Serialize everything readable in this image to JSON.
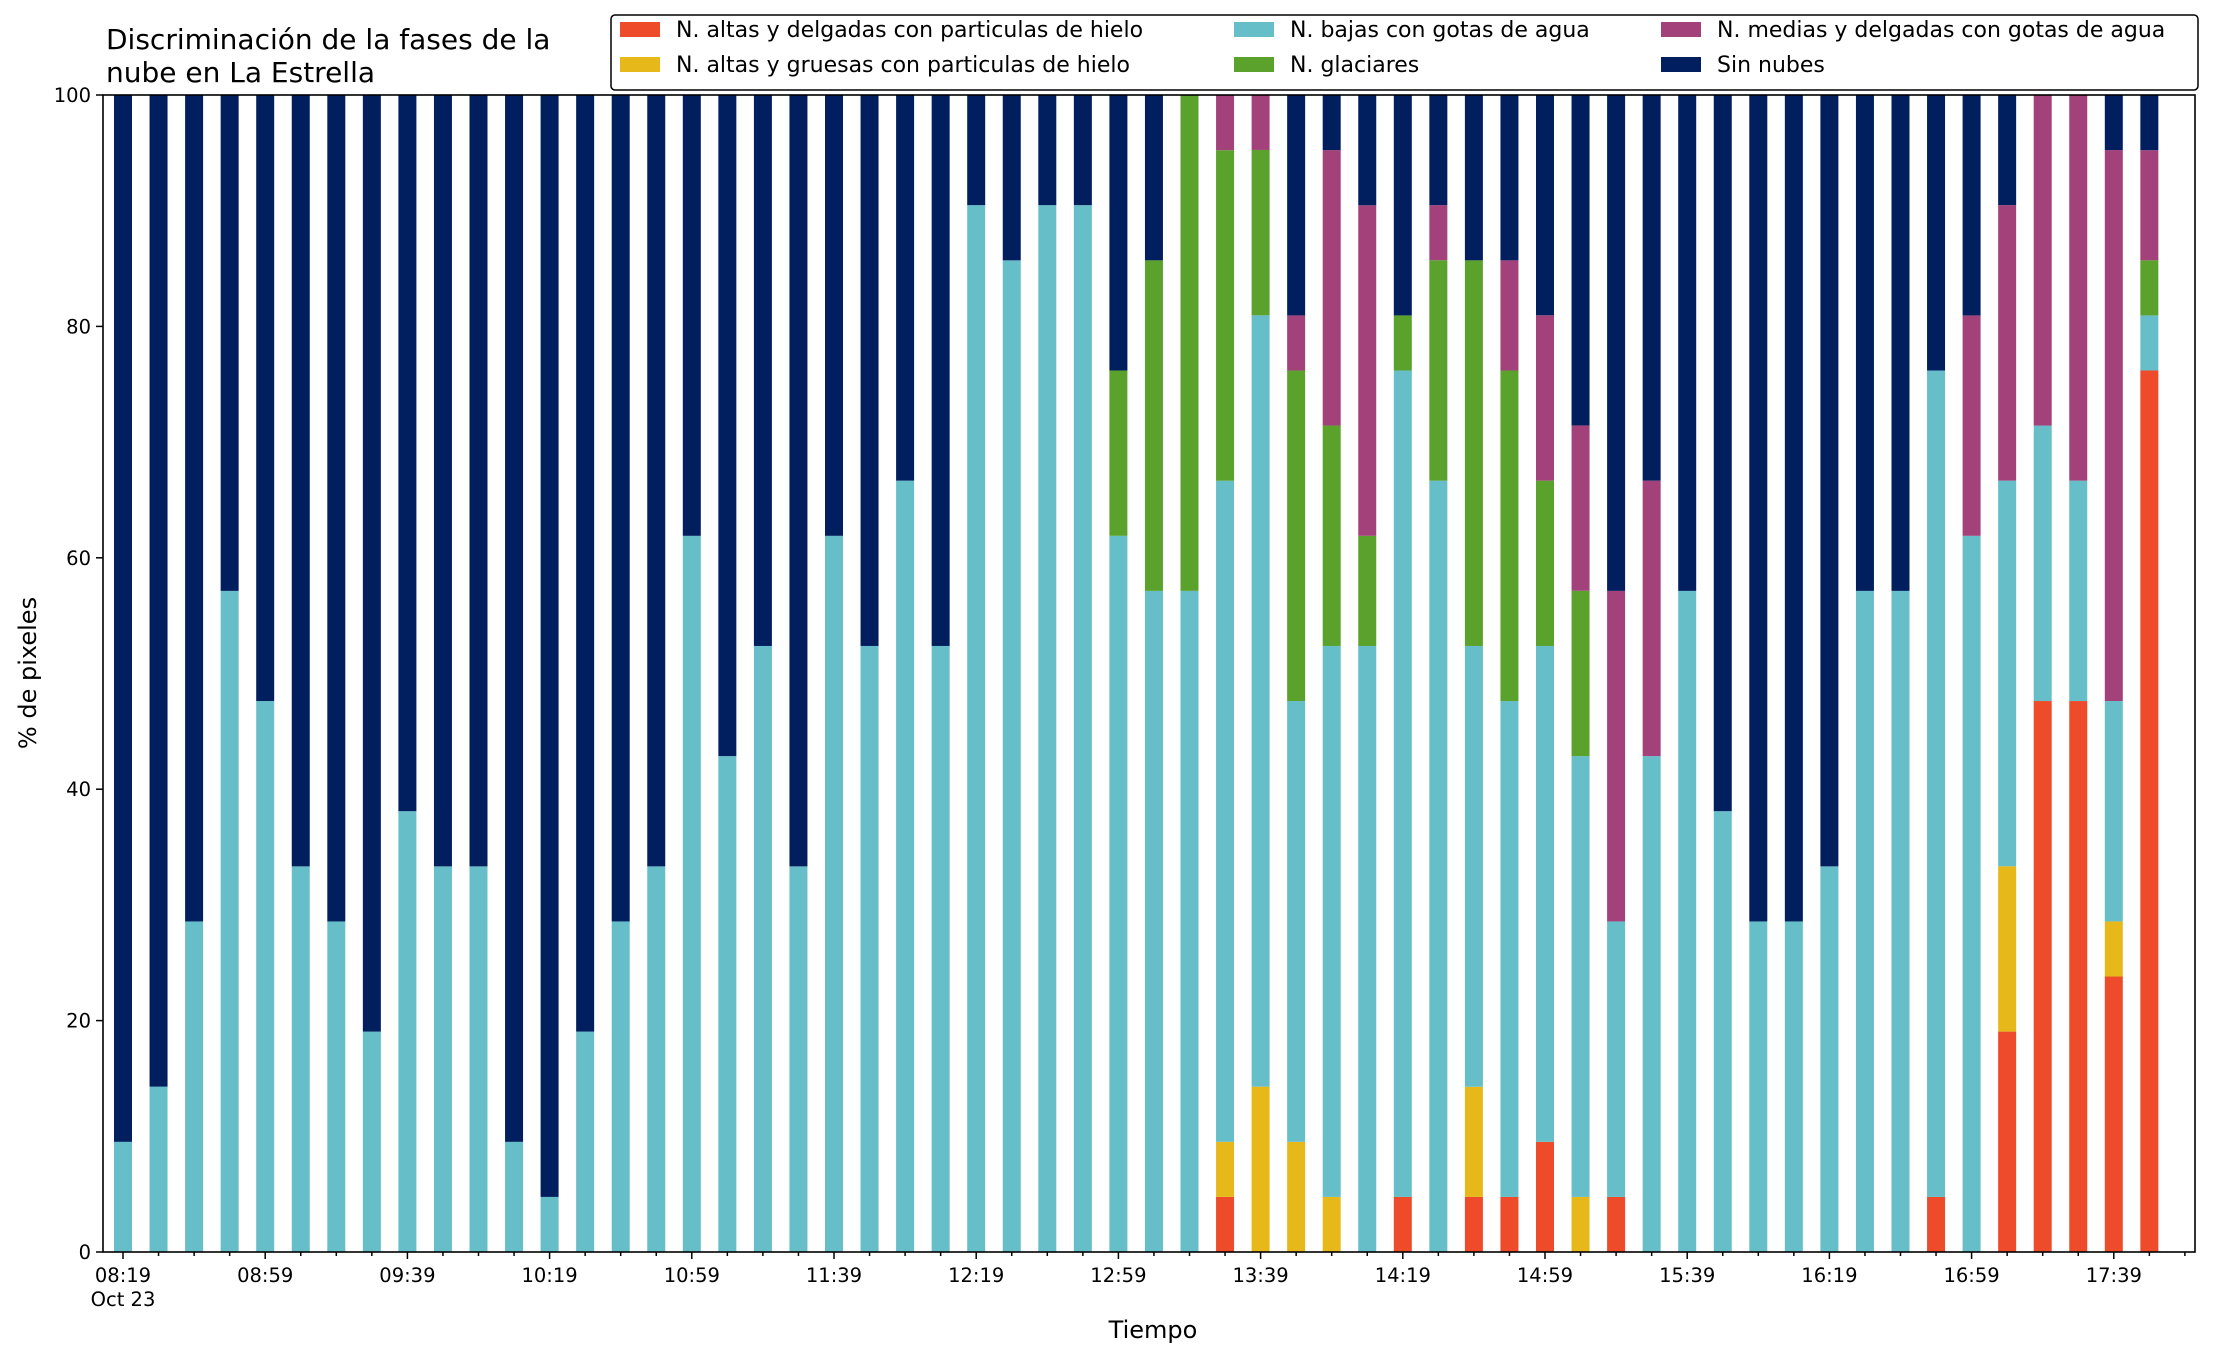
{
  "chart_data": {
    "type": "bar",
    "stacked": true,
    "title": [
      "Discriminación de la fases de la",
      "nube en La Estrella"
    ],
    "xlabel": "Tiempo",
    "ylabel": "% de pixeles",
    "ylim": [
      0,
      100
    ],
    "yticks": [
      "0",
      "20",
      "40",
      "60",
      "80",
      "100"
    ],
    "xticks": [
      "08:19",
      "08:59",
      "09:39",
      "10:19",
      "10:59",
      "11:39",
      "12:19",
      "12:59",
      "13:39",
      "14:19",
      "14:59",
      "15:39",
      "16:19",
      "16:59",
      "17:39"
    ],
    "xtick_sub": "Oct 23",
    "x_step_minutes": 10,
    "categories": [
      "08:19",
      "08:29",
      "08:39",
      "08:49",
      "08:59",
      "09:09",
      "09:19",
      "09:29",
      "09:39",
      "09:49",
      "09:59",
      "10:09",
      "10:19",
      "10:29",
      "10:39",
      "10:49",
      "10:59",
      "11:09",
      "11:19",
      "11:29",
      "11:39",
      "11:49",
      "11:59",
      "12:09",
      "12:19",
      "12:29",
      "12:39",
      "12:49",
      "12:59",
      "13:09",
      "13:19",
      "13:29",
      "13:39",
      "13:49",
      "13:59",
      "14:09",
      "14:19",
      "14:29",
      "14:39",
      "14:49",
      "14:59",
      "15:09",
      "15:19",
      "15:29",
      "15:39",
      "15:49",
      "15:59",
      "16:09",
      "16:19",
      "16:29",
      "16:39",
      "16:49",
      "16:59",
      "17:09",
      "17:19",
      "17:29",
      "17:39",
      "17:49"
    ],
    "legend_position": "top-right",
    "legend_columns": 3,
    "grid": false,
    "series": [
      {
        "name": "N. altas y delgadas con particulas de hielo",
        "color": "#ee4b2b",
        "values": [
          0,
          0,
          0,
          0,
          0,
          0,
          0,
          0,
          0,
          0,
          0,
          0,
          0,
          0,
          0,
          0,
          0,
          0,
          0,
          0,
          0,
          0,
          0,
          0,
          0,
          0,
          0,
          0,
          0,
          0,
          0,
          4.76,
          0,
          0,
          0,
          0,
          4.76,
          0,
          4.76,
          4.76,
          9.52,
          0,
          4.76,
          0,
          0,
          0,
          0,
          0,
          0,
          0,
          0,
          4.76,
          0,
          19.05,
          47.62,
          47.62,
          23.81,
          76.19
        ]
      },
      {
        "name": "N. altas y gruesas con particulas de hielo",
        "color": "#e6b81a",
        "values": [
          0,
          0,
          0,
          0,
          0,
          0,
          0,
          0,
          0,
          0,
          0,
          0,
          0,
          0,
          0,
          0,
          0,
          0,
          0,
          0,
          0,
          0,
          0,
          0,
          0,
          0,
          0,
          0,
          0,
          0,
          0,
          4.76,
          14.29,
          9.52,
          4.76,
          0,
          0,
          0,
          9.52,
          0,
          0,
          4.76,
          0,
          0,
          0,
          0,
          0,
          0,
          0,
          0,
          0,
          0,
          0,
          14.29,
          0,
          0,
          4.76,
          0
        ]
      },
      {
        "name": "N. bajas con gotas de agua",
        "color": "#66bec8",
        "values": [
          9.52,
          14.29,
          28.57,
          57.14,
          47.62,
          33.33,
          28.57,
          19.05,
          38.1,
          33.33,
          33.33,
          9.52,
          4.76,
          19.05,
          28.57,
          33.33,
          61.9,
          42.86,
          52.38,
          33.33,
          61.9,
          52.38,
          66.67,
          52.38,
          90.48,
          85.71,
          90.48,
          90.48,
          61.9,
          57.14,
          57.14,
          57.14,
          66.67,
          38.1,
          47.62,
          52.38,
          71.43,
          66.67,
          38.1,
          42.86,
          42.86,
          38.1,
          23.81,
          42.86,
          57.14,
          38.1,
          28.57,
          28.57,
          33.33,
          57.14,
          57.14,
          71.43,
          61.9,
          33.33,
          23.81,
          19.05,
          19.05,
          4.76
        ]
      },
      {
        "name": "N. glaciares",
        "color": "#5ba22d",
        "values": [
          0,
          0,
          0,
          0,
          0,
          0,
          0,
          0,
          0,
          0,
          0,
          0,
          0,
          0,
          0,
          0,
          0,
          0,
          0,
          0,
          0,
          0,
          0,
          0,
          0,
          0,
          0,
          0,
          14.29,
          28.57,
          42.86,
          28.57,
          14.29,
          28.57,
          19.05,
          9.52,
          4.76,
          19.05,
          33.33,
          28.57,
          14.29,
          14.29,
          0,
          0,
          0,
          0,
          0,
          0,
          0,
          0,
          0,
          0,
          0,
          0,
          0,
          0,
          0,
          4.76
        ]
      },
      {
        "name": "N. medias y delgadas con gotas de agua",
        "color": "#a3427a",
        "values": [
          0,
          0,
          0,
          0,
          0,
          0,
          0,
          0,
          0,
          0,
          0,
          0,
          0,
          0,
          0,
          0,
          0,
          0,
          0,
          0,
          0,
          0,
          0,
          0,
          0,
          0,
          0,
          0,
          0,
          0,
          0,
          4.76,
          4.76,
          4.76,
          23.81,
          28.57,
          0,
          4.76,
          0,
          9.52,
          14.29,
          14.29,
          28.57,
          23.81,
          0,
          0,
          0,
          0,
          0,
          0,
          0,
          0,
          19.05,
          23.81,
          28.57,
          33.33,
          47.62,
          9.52
        ]
      },
      {
        "name": "Sin nubes",
        "color": "#011f5f",
        "values": [
          90.48,
          85.71,
          71.43,
          42.86,
          52.38,
          66.67,
          71.43,
          80.95,
          61.9,
          66.67,
          66.67,
          90.48,
          95.24,
          80.95,
          71.43,
          66.67,
          38.1,
          57.14,
          47.62,
          66.67,
          38.1,
          47.62,
          33.33,
          47.62,
          9.52,
          14.29,
          9.52,
          9.52,
          23.81,
          14.29,
          0,
          0,
          0,
          19.05,
          4.76,
          9.52,
          19.05,
          9.52,
          14.29,
          14.29,
          19.05,
          28.57,
          42.86,
          33.33,
          42.86,
          61.9,
          71.43,
          71.43,
          66.67,
          42.86,
          42.86,
          23.81,
          19.05,
          9.52,
          0,
          0,
          4.76,
          4.76
        ]
      }
    ]
  }
}
